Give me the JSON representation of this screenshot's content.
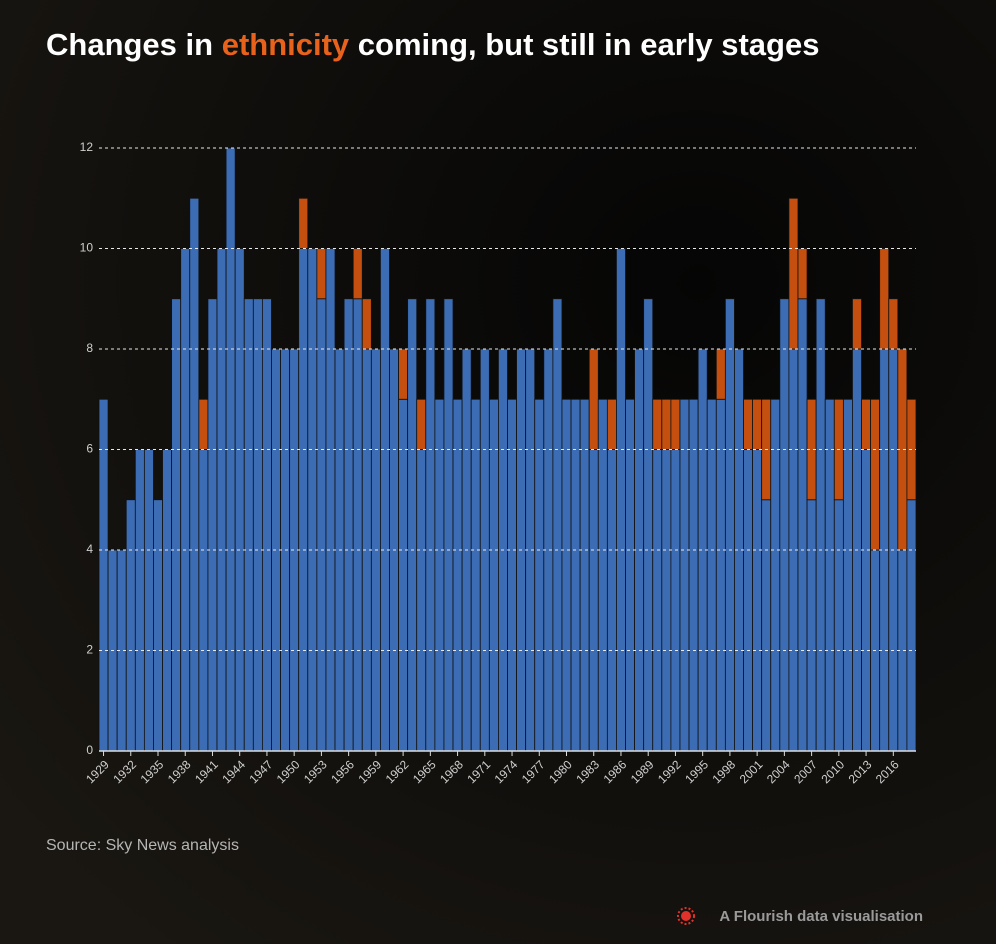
{
  "chart_data": {
    "type": "stacked_bar",
    "title": [
      "Changes in ",
      "ethnicity",
      " coming, but still in early stages"
    ],
    "source": "Source: Sky News analysis",
    "footer": "A Flourish data visualisation",
    "categories": [
      "1929",
      null,
      null,
      "1932",
      null,
      null,
      "1935",
      null,
      null,
      "1938",
      null,
      null,
      "1941",
      null,
      null,
      "1944",
      null,
      null,
      "1947",
      null,
      null,
      "1950",
      null,
      null,
      "1953",
      null,
      null,
      "1956",
      null,
      null,
      "1959",
      null,
      null,
      "1962",
      null,
      null,
      "1965",
      null,
      null,
      "1968",
      null,
      null,
      "1971",
      null,
      null,
      "1974",
      null,
      null,
      "1977",
      null,
      null,
      "1980",
      null,
      null,
      "1983",
      null,
      null,
      "1986",
      null,
      null,
      "1989",
      null,
      null,
      "1992",
      null,
      null,
      "1995",
      null,
      null,
      "1998",
      null,
      null,
      "2001",
      null,
      null,
      "2004",
      null,
      null,
      "2007",
      null,
      null,
      "2010",
      null,
      null,
      "2013",
      null,
      null,
      "2016",
      null,
      null
    ],
    "series": [
      {
        "color": "#3b6cb4",
        "values": [
          7,
          4,
          4,
          5,
          6,
          6,
          5,
          6,
          9,
          10,
          11,
          6,
          9,
          10,
          12,
          10,
          9,
          9,
          9,
          8,
          8,
          8,
          10,
          10,
          9,
          10,
          8,
          9,
          9,
          8,
          8,
          10,
          8,
          7,
          9,
          6,
          9,
          7,
          9,
          7,
          8,
          7,
          8,
          7,
          8,
          7,
          8,
          8,
          7,
          8,
          9,
          7,
          7,
          7,
          6,
          7,
          6,
          10,
          7,
          8,
          9,
          6,
          6,
          6,
          7,
          7,
          8,
          7,
          7,
          9,
          8,
          6,
          6,
          5,
          7,
          9,
          8,
          9,
          5,
          9,
          7,
          5,
          7,
          8,
          6,
          4,
          8,
          8,
          4,
          5
        ]
      },
      {
        "color": "#c44f0e",
        "values": [
          0,
          0,
          0,
          0,
          0,
          0,
          0,
          0,
          0,
          0,
          0,
          1,
          0,
          0,
          0,
          0,
          0,
          0,
          0,
          0,
          0,
          0,
          1,
          0,
          1,
          0,
          0,
          0,
          1,
          1,
          0,
          0,
          0,
          1,
          0,
          1,
          0,
          0,
          0,
          0,
          0,
          0,
          0,
          0,
          0,
          0,
          0,
          0,
          0,
          0,
          0,
          0,
          0,
          0,
          2,
          0,
          1,
          0,
          0,
          0,
          0,
          1,
          1,
          1,
          0,
          0,
          0,
          0,
          1,
          0,
          0,
          1,
          1,
          2,
          0,
          0,
          3,
          1,
          2,
          0,
          0,
          2,
          0,
          1,
          1,
          3,
          2,
          1,
          4,
          2
        ]
      }
    ],
    "ylim": [
      0,
      12
    ],
    "yticks": [
      0,
      2,
      4,
      6,
      8,
      10,
      12
    ],
    "grid": true
  }
}
